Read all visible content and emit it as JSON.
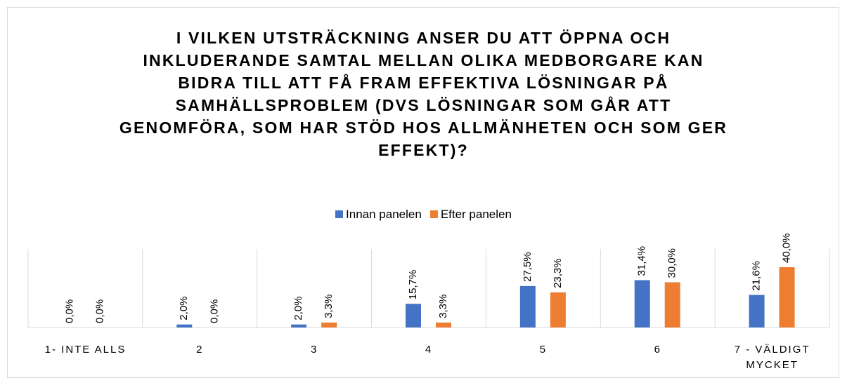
{
  "chart_data": {
    "type": "bar",
    "title": "I VILKEN UTSTRÄCKNING ANSER DU ATT ÖPPNA OCH INKLUDERANDE SAMTAL MELLAN OLIKA MEDBORGARE KAN BIDRA TILL ATT FÅ FRAM EFFEKTIVA LÖSNINGAR PÅ SAMHÄLLSPROBLEM (DVS LÖSNINGAR SOM GÅR ATT GENOMFÖRA, SOM HAR STÖD HOS ALLMÄNHETEN OCH SOM GER EFFEKT)?",
    "categories": [
      "1- INTE ALLS",
      "2",
      "3",
      "4",
      "5",
      "6",
      "7 - VÄLDIGT MYCKET"
    ],
    "series": [
      {
        "name": "Innan panelen",
        "color": "#4472c4",
        "values": [
          0,
          2.0,
          2.0,
          15.7,
          27.5,
          31.4,
          21.6
        ],
        "value_labels": [
          "0,0%",
          "2,0%",
          "2,0%",
          "15,7%",
          "27,5%",
          "31,4%",
          "21,6%"
        ]
      },
      {
        "name": "Efter panelen",
        "color": "#ed7d31",
        "values": [
          0,
          0,
          3.3,
          3.3,
          23.3,
          30.0,
          40.0
        ],
        "value_labels": [
          "0,0%",
          "0,0%",
          "3,3%",
          "3,3%",
          "23,3%",
          "30,0%",
          "40,0%"
        ]
      }
    ],
    "legend": "top",
    "grid": "vertical"
  }
}
